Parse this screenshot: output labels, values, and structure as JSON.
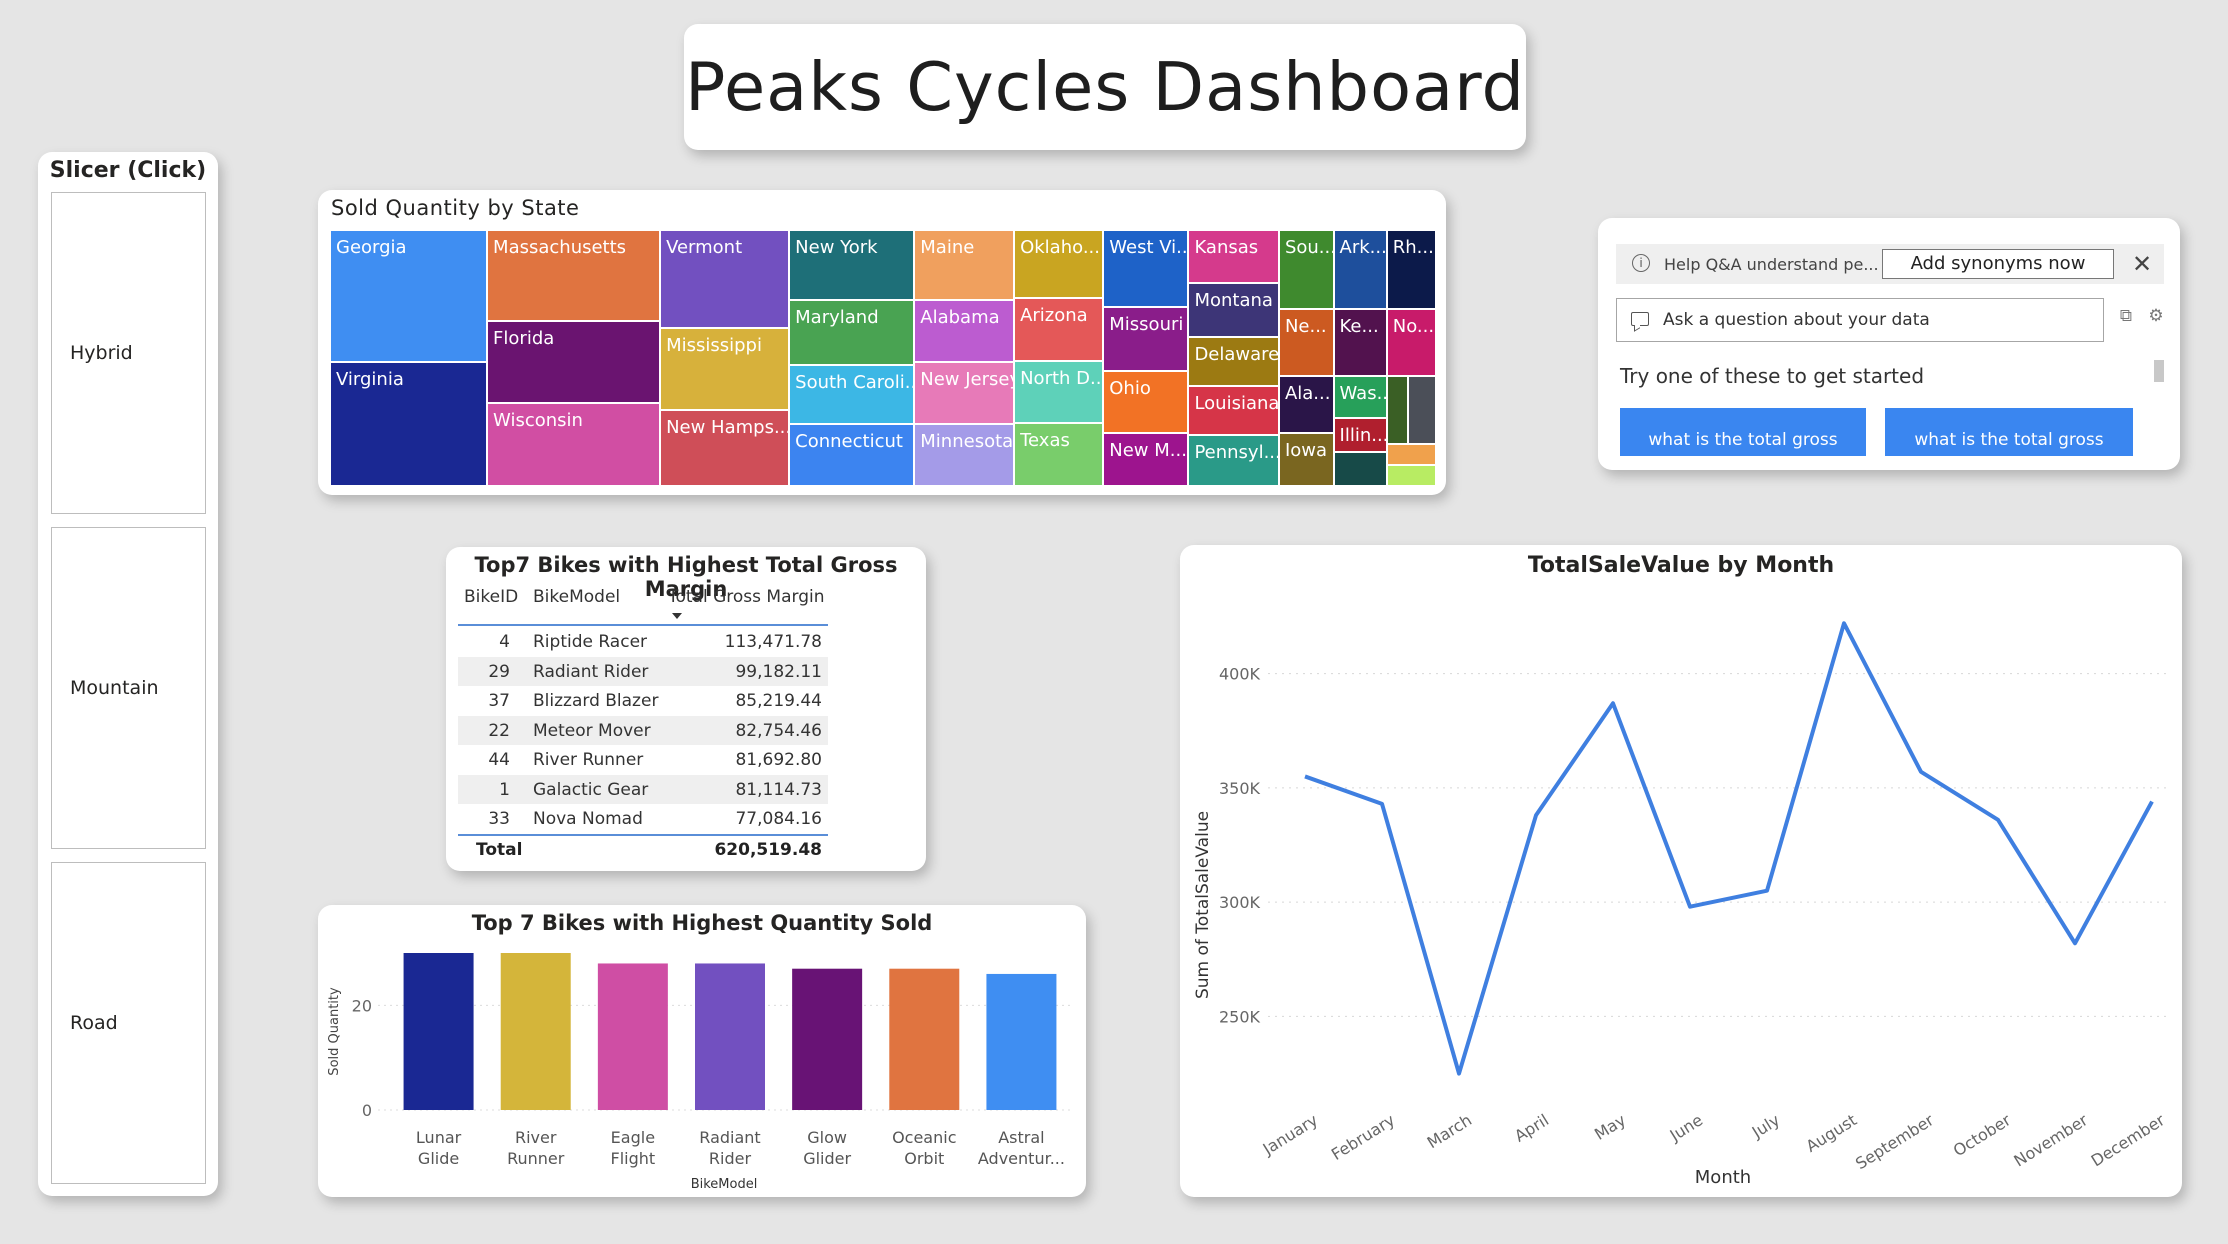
{
  "title": "Peaks Cycles Dashboard",
  "slicer": {
    "title": "Slicer (Click)",
    "items": [
      "Hybrid",
      "Mountain",
      "Road"
    ]
  },
  "treemap": {
    "title": "Sold Quantity by State",
    "tiles": [
      {
        "label": "Georgia",
        "color": "#3f8ef2"
      },
      {
        "label": "Virginia",
        "color": "#1a2893"
      },
      {
        "label": "Massachusetts",
        "color": "#e07440"
      },
      {
        "label": "Florida",
        "color": "#6a1470"
      },
      {
        "label": "Wisconsin",
        "color": "#d14ea3"
      },
      {
        "label": "Vermont",
        "color": "#7250c0"
      },
      {
        "label": "Mississippi",
        "color": "#d7b13b"
      },
      {
        "label": "New Hamps...",
        "color": "#cf4e58"
      },
      {
        "label": "New York",
        "color": "#1e6f78"
      },
      {
        "label": "Maryland",
        "color": "#49a352"
      },
      {
        "label": "South Caroli...",
        "color": "#3cb7e5"
      },
      {
        "label": "Connecticut",
        "color": "#3c84f0"
      },
      {
        "label": "Maine",
        "color": "#f0a05e"
      },
      {
        "label": "Alabama",
        "color": "#bc5cd0"
      },
      {
        "label": "New Jersey",
        "color": "#e77ab8"
      },
      {
        "label": "Minnesota",
        "color": "#a49be8"
      },
      {
        "label": "Oklaho...",
        "color": "#c9a521"
      },
      {
        "label": "Arizona",
        "color": "#e45858"
      },
      {
        "label": "North D...",
        "color": "#5ed1b9"
      },
      {
        "label": "Texas",
        "color": "#79cd6b"
      },
      {
        "label": "West Vi...",
        "color": "#1e62c8"
      },
      {
        "label": "Missouri",
        "color": "#8a1d8a"
      },
      {
        "label": "Ohio",
        "color": "#f27225"
      },
      {
        "label": "New M...",
        "color": "#9d148e"
      },
      {
        "label": "Kansas",
        "color": "#d53a8c"
      },
      {
        "label": "Montana",
        "color": "#3d3577"
      },
      {
        "label": "Delaware",
        "color": "#9c7a12"
      },
      {
        "label": "Louisiana",
        "color": "#d63548"
      },
      {
        "label": "Pennsyl...",
        "color": "#2a9a88"
      },
      {
        "label": "Sou...",
        "color": "#3f8a2e"
      },
      {
        "label": "Ne...",
        "color": "#cc5a21"
      },
      {
        "label": "Ala...",
        "color": "#2a1548"
      },
      {
        "label": "Iowa",
        "color": "#7a6620"
      },
      {
        "label": "Ark...",
        "color": "#1e4f9c"
      },
      {
        "label": "Ke...",
        "color": "#52124e"
      },
      {
        "label": "Was...",
        "color": "#27a05a"
      },
      {
        "label": "Illin...",
        "color": "#b01f2e"
      },
      {
        "label": "",
        "color": "#174a48"
      },
      {
        "label": "Rh...",
        "color": "#0c1a4a"
      },
      {
        "label": "No...",
        "color": "#c81b6a"
      },
      {
        "label": "",
        "color": "#3a5f25"
      },
      {
        "label": "",
        "color": "#4b4f58"
      },
      {
        "label": "",
        "color": "#f0a14c"
      },
      {
        "label": "",
        "color": "#b8ec63"
      }
    ]
  },
  "qa": {
    "help_text": "Help Q&A understand pe...",
    "add_synonyms": "Add synonyms now",
    "input_placeholder": "Ask a question about your data",
    "suggest_label": "Try one of these to get started",
    "suggestions": [
      "what is the total gross",
      "what is the total gross"
    ]
  },
  "table": {
    "title": "Top7 Bikes with Highest Total Gross Margin",
    "headers": [
      "BikeID",
      "BikeModel",
      "Total Gross Margin"
    ],
    "rows": [
      {
        "id": "4",
        "model": "Riptide Racer",
        "margin": "113,471.78"
      },
      {
        "id": "29",
        "model": "Radiant Rider",
        "margin": "99,182.11"
      },
      {
        "id": "37",
        "model": "Blizzard Blazer",
        "margin": "85,219.44"
      },
      {
        "id": "22",
        "model": "Meteor Mover",
        "margin": "82,754.46"
      },
      {
        "id": "44",
        "model": "River Runner",
        "margin": "81,692.80"
      },
      {
        "id": "1",
        "model": "Galactic Gear",
        "margin": "81,114.73"
      },
      {
        "id": "33",
        "model": "Nova Nomad",
        "margin": "77,084.16"
      }
    ],
    "total_label": "Total",
    "total_value": "620,519.48"
  },
  "bar_chart_data": {
    "type": "bar",
    "title": "Top 7 Bikes with Highest Quantity Sold",
    "xlabel": "BikeModel",
    "ylabel": "Sold Quantity",
    "yticks": [
      "0",
      "20"
    ],
    "ylim": [
      0,
      30
    ],
    "categories": [
      "Lunar Glide",
      "River Runner",
      "Eagle Flight",
      "Radiant Rider",
      "Glow Glider",
      "Oceanic Orbit",
      "Astral Adventur..."
    ],
    "category_lines": [
      [
        "Lunar",
        "Glide"
      ],
      [
        "River",
        "Runner"
      ],
      [
        "Eagle",
        "Flight"
      ],
      [
        "Radiant",
        "Rider"
      ],
      [
        "Glow",
        "Glider"
      ],
      [
        "Oceanic",
        "Orbit"
      ],
      [
        "Astral",
        "Adventur..."
      ]
    ],
    "values": [
      30,
      30,
      28,
      28,
      27,
      27,
      26
    ],
    "colors": [
      "#1a2893",
      "#d4b53a",
      "#cf4ea4",
      "#7250c0",
      "#681375",
      "#e07440",
      "#3f8ef2"
    ]
  },
  "chart_data": {
    "type": "line",
    "title": "TotalSaleValue by Month",
    "xlabel": "Month",
    "ylabel": "Sum of TotalSaleValue",
    "ylim": [
      220000,
      430000
    ],
    "yticks": [
      250000,
      300000,
      350000,
      400000
    ],
    "ytick_labels": [
      "250K",
      "300K",
      "350K",
      "400K"
    ],
    "grid": true,
    "color": "#3f7fe0",
    "categories": [
      "January",
      "February",
      "March",
      "April",
      "May",
      "June",
      "July",
      "August",
      "September",
      "October",
      "November",
      "December"
    ],
    "values": [
      355000,
      343000,
      225000,
      338000,
      387000,
      298000,
      305000,
      422000,
      357000,
      336000,
      282000,
      344000
    ]
  }
}
